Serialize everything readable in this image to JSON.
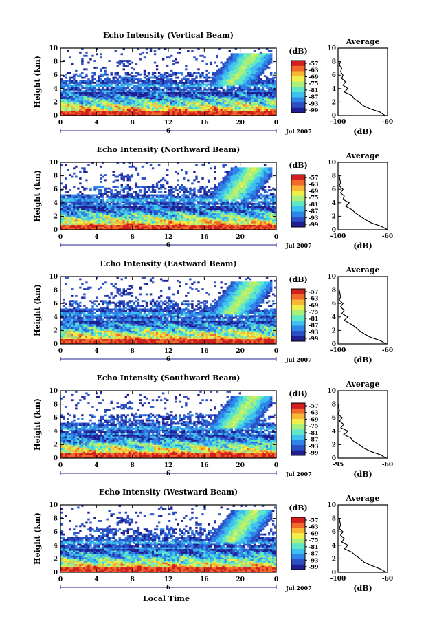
{
  "figure": {
    "x_axis_label": "Local Time",
    "date_label": "Jul 2007",
    "day_label": "6",
    "colorbar_unit": "(dB)",
    "colorbar_ticks": [
      "-57",
      "-63",
      "-69",
      "-75",
      "-81",
      "-87",
      "-93",
      "-99"
    ],
    "colorscale": [
      "#1f1f8f",
      "#2c4fc4",
      "#2f86e8",
      "#3fc1f0",
      "#5fe8c6",
      "#a8f07a",
      "#f0ef4a",
      "#f8b735",
      "#f06a2a",
      "#d21f1f"
    ],
    "average_title": "Average",
    "average_xlabel": "(dB)"
  },
  "chart_data": [
    {
      "type": "heatmap",
      "title": "Echo Intensity (Vertical Beam)",
      "ylabel": "Height (km)",
      "xlim": [
        0,
        24
      ],
      "ylim": [
        0,
        10
      ],
      "xticks": [
        "0",
        "4",
        "8",
        "12",
        "16",
        "20",
        "0"
      ],
      "yticks": [
        "0",
        "2",
        "4",
        "6",
        "8",
        "10"
      ],
      "zlim": [
        -99,
        -57
      ],
      "average": {
        "xticks": [
          "-100",
          "-60"
        ],
        "xlim": [
          -100,
          -60
        ],
        "profile": [
          [
            -62,
            0
          ],
          [
            -66,
            0.5
          ],
          [
            -74,
            1
          ],
          [
            -80,
            1.5
          ],
          [
            -83,
            2
          ],
          [
            -87,
            2.5
          ],
          [
            -89,
            3
          ],
          [
            -95,
            3.5
          ],
          [
            -92,
            4
          ],
          [
            -96,
            4.5
          ],
          [
            -94,
            5
          ],
          [
            -97,
            5.5
          ],
          [
            -96,
            6
          ],
          [
            -98,
            6.5
          ],
          [
            -97,
            7
          ],
          [
            -99,
            7.5
          ],
          [
            -98,
            8
          ]
        ]
      }
    },
    {
      "type": "heatmap",
      "title": "Echo Intensity (Northward Beam)",
      "ylabel": "Height (km)",
      "xlim": [
        0,
        24
      ],
      "ylim": [
        0,
        10
      ],
      "xticks": [
        "0",
        "4",
        "8",
        "12",
        "16",
        "20",
        "0"
      ],
      "yticks": [
        "0",
        "2",
        "4",
        "6",
        "8",
        "10"
      ],
      "zlim": [
        -99,
        -57
      ],
      "average": {
        "xticks": [
          "-100",
          "-60"
        ],
        "xlim": [
          -100,
          -60
        ],
        "profile": [
          [
            -60,
            0
          ],
          [
            -65,
            0.5
          ],
          [
            -73,
            1
          ],
          [
            -78,
            1.5
          ],
          [
            -82,
            2
          ],
          [
            -86,
            2.5
          ],
          [
            -89,
            3
          ],
          [
            -94,
            3.5
          ],
          [
            -91,
            4
          ],
          [
            -96,
            4.5
          ],
          [
            -95,
            5
          ],
          [
            -98,
            5.5
          ],
          [
            -96,
            6
          ],
          [
            -99,
            6.5
          ],
          [
            -98,
            7
          ],
          [
            -99,
            8
          ]
        ]
      }
    },
    {
      "type": "heatmap",
      "title": "Echo Intensity (Eastward Beam)",
      "ylabel": "Height (km)",
      "xlim": [
        0,
        24
      ],
      "ylim": [
        0,
        10
      ],
      "xticks": [
        "0",
        "4",
        "8",
        "12",
        "16",
        "20",
        "0"
      ],
      "yticks": [
        "0",
        "2",
        "4",
        "6",
        "8",
        "10"
      ],
      "zlim": [
        -99,
        -57
      ],
      "average": {
        "xticks": [
          "-100",
          "-60"
        ],
        "xlim": [
          -100,
          -60
        ],
        "profile": [
          [
            -61,
            0
          ],
          [
            -66,
            0.5
          ],
          [
            -74,
            1
          ],
          [
            -79,
            1.5
          ],
          [
            -83,
            2
          ],
          [
            -86,
            2.5
          ],
          [
            -90,
            3
          ],
          [
            -95,
            3.5
          ],
          [
            -92,
            4
          ],
          [
            -97,
            4.5
          ],
          [
            -95,
            5
          ],
          [
            -98,
            5.5
          ],
          [
            -96,
            6
          ],
          [
            -99,
            6.5
          ],
          [
            -98,
            7
          ],
          [
            -99,
            8
          ]
        ]
      }
    },
    {
      "type": "heatmap",
      "title": "Echo Intensity (Southward Beam)",
      "ylabel": "Height (km)",
      "xlim": [
        0,
        24
      ],
      "ylim": [
        0,
        10
      ],
      "xticks": [
        "0",
        "4",
        "8",
        "12",
        "16",
        "20",
        "0"
      ],
      "yticks": [
        "0",
        "2",
        "4",
        "6",
        "8",
        "10"
      ],
      "zlim": [
        -99,
        -57
      ],
      "average": {
        "xticks": [
          "-95",
          "-60"
        ],
        "xlim": [
          -95,
          -60
        ],
        "profile": [
          [
            -61,
            0
          ],
          [
            -65,
            0.5
          ],
          [
            -72,
            1
          ],
          [
            -77,
            1.5
          ],
          [
            -80,
            2
          ],
          [
            -84,
            2.5
          ],
          [
            -86,
            3
          ],
          [
            -91,
            3.5
          ],
          [
            -88,
            4
          ],
          [
            -93,
            4.5
          ],
          [
            -91,
            5
          ],
          [
            -94,
            5.5
          ],
          [
            -92,
            6
          ],
          [
            -95,
            6.5
          ],
          [
            -94,
            7
          ],
          [
            -95,
            8
          ]
        ]
      }
    },
    {
      "type": "heatmap",
      "title": "Echo Intensity (Westward Beam)",
      "ylabel": "Height (km)",
      "xlim": [
        0,
        24
      ],
      "ylim": [
        0,
        10
      ],
      "xticks": [
        "0",
        "4",
        "8",
        "12",
        "16",
        "20",
        "0"
      ],
      "yticks": [
        "0",
        "2",
        "4",
        "6",
        "8",
        "10"
      ],
      "zlim": [
        -99,
        -57
      ],
      "average": {
        "xticks": [
          "-100",
          "-60"
        ],
        "xlim": [
          -100,
          -60
        ],
        "profile": [
          [
            -61,
            0
          ],
          [
            -66,
            0.5
          ],
          [
            -73,
            1
          ],
          [
            -79,
            1.5
          ],
          [
            -82,
            2
          ],
          [
            -86,
            2.5
          ],
          [
            -89,
            3
          ],
          [
            -95,
            3.5
          ],
          [
            -92,
            4
          ],
          [
            -97,
            4.5
          ],
          [
            -95,
            5
          ],
          [
            -98,
            5.5
          ],
          [
            -96,
            6
          ],
          [
            -99,
            6.5
          ],
          [
            -98,
            7
          ],
          [
            -99,
            8
          ]
        ]
      }
    }
  ]
}
